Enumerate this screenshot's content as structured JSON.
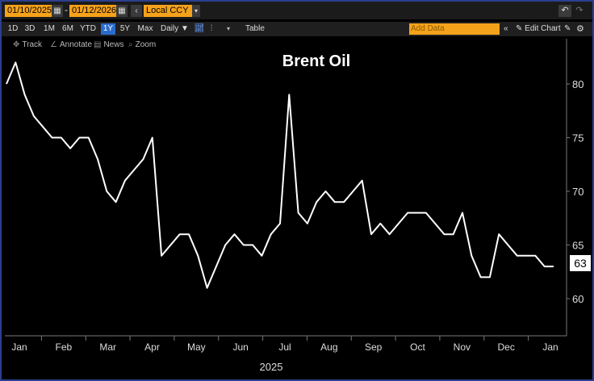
{
  "toolbar": {
    "start_date": "01/10/2025",
    "end_date": "01/12/2026",
    "dash": "-",
    "currency": "Local CCY",
    "periods": [
      "1D",
      "3D",
      "1M",
      "6M",
      "YTD",
      "1Y",
      "5Y",
      "Max"
    ],
    "active_period": "1Y",
    "frequency": "Daily",
    "table_label": "Table",
    "add_data_placeholder": "Add Data",
    "edit_chart_label": "Edit Chart"
  },
  "tools": {
    "track": "Track",
    "annotate": "Annotate",
    "news": "News",
    "zoom": "Zoom"
  },
  "chart_data": {
    "type": "line",
    "title": "Brent Oil",
    "year_label": "2025",
    "xlabel": "",
    "ylabel": "",
    "x_ticks": [
      "Jan",
      "Feb",
      "Mar",
      "Apr",
      "May",
      "Jun",
      "Jul",
      "Aug",
      "Sep",
      "Oct",
      "Nov",
      "Dec",
      "Jan"
    ],
    "y_ticks": [
      60,
      65,
      70,
      75,
      80
    ],
    "ylim": [
      57,
      85
    ],
    "last_value_label": "63",
    "line_color": "#ffffff",
    "series": [
      {
        "name": "Brent Oil",
        "x": [
          0,
          0.2,
          0.4,
          0.6,
          0.8,
          1,
          1.2,
          1.4,
          1.6,
          1.8,
          2,
          2.2,
          2.4,
          2.6,
          2.8,
          3,
          3.2,
          3.4,
          3.6,
          3.8,
          4,
          4.2,
          4.4,
          4.6,
          4.8,
          5,
          5.2,
          5.4,
          5.6,
          5.8,
          6,
          6.2,
          6.4,
          6.6,
          6.8,
          7,
          7.2,
          7.4,
          7.6,
          7.8,
          8,
          8.2,
          8.4,
          8.6,
          8.8,
          9,
          9.2,
          9.4,
          9.6,
          9.8,
          10,
          10.2,
          10.4,
          10.6,
          10.8,
          11,
          11.2,
          11.4,
          11.6,
          11.8,
          12
        ],
        "y": [
          80,
          82,
          79,
          77,
          76,
          75,
          75,
          74,
          75,
          75,
          73,
          70,
          69,
          71,
          72,
          73,
          75,
          64,
          65,
          66,
          66,
          64,
          61,
          63,
          65,
          66,
          65,
          65,
          64,
          66,
          67,
          79,
          68,
          67,
          69,
          70,
          69,
          69,
          70,
          71,
          66,
          67,
          66,
          67,
          68,
          68,
          68,
          67,
          66,
          66,
          68,
          64,
          62,
          62,
          66,
          65,
          64,
          64,
          64,
          63,
          63
        ],
        "values_note": "approximate daily closes read from chart"
      }
    ]
  }
}
